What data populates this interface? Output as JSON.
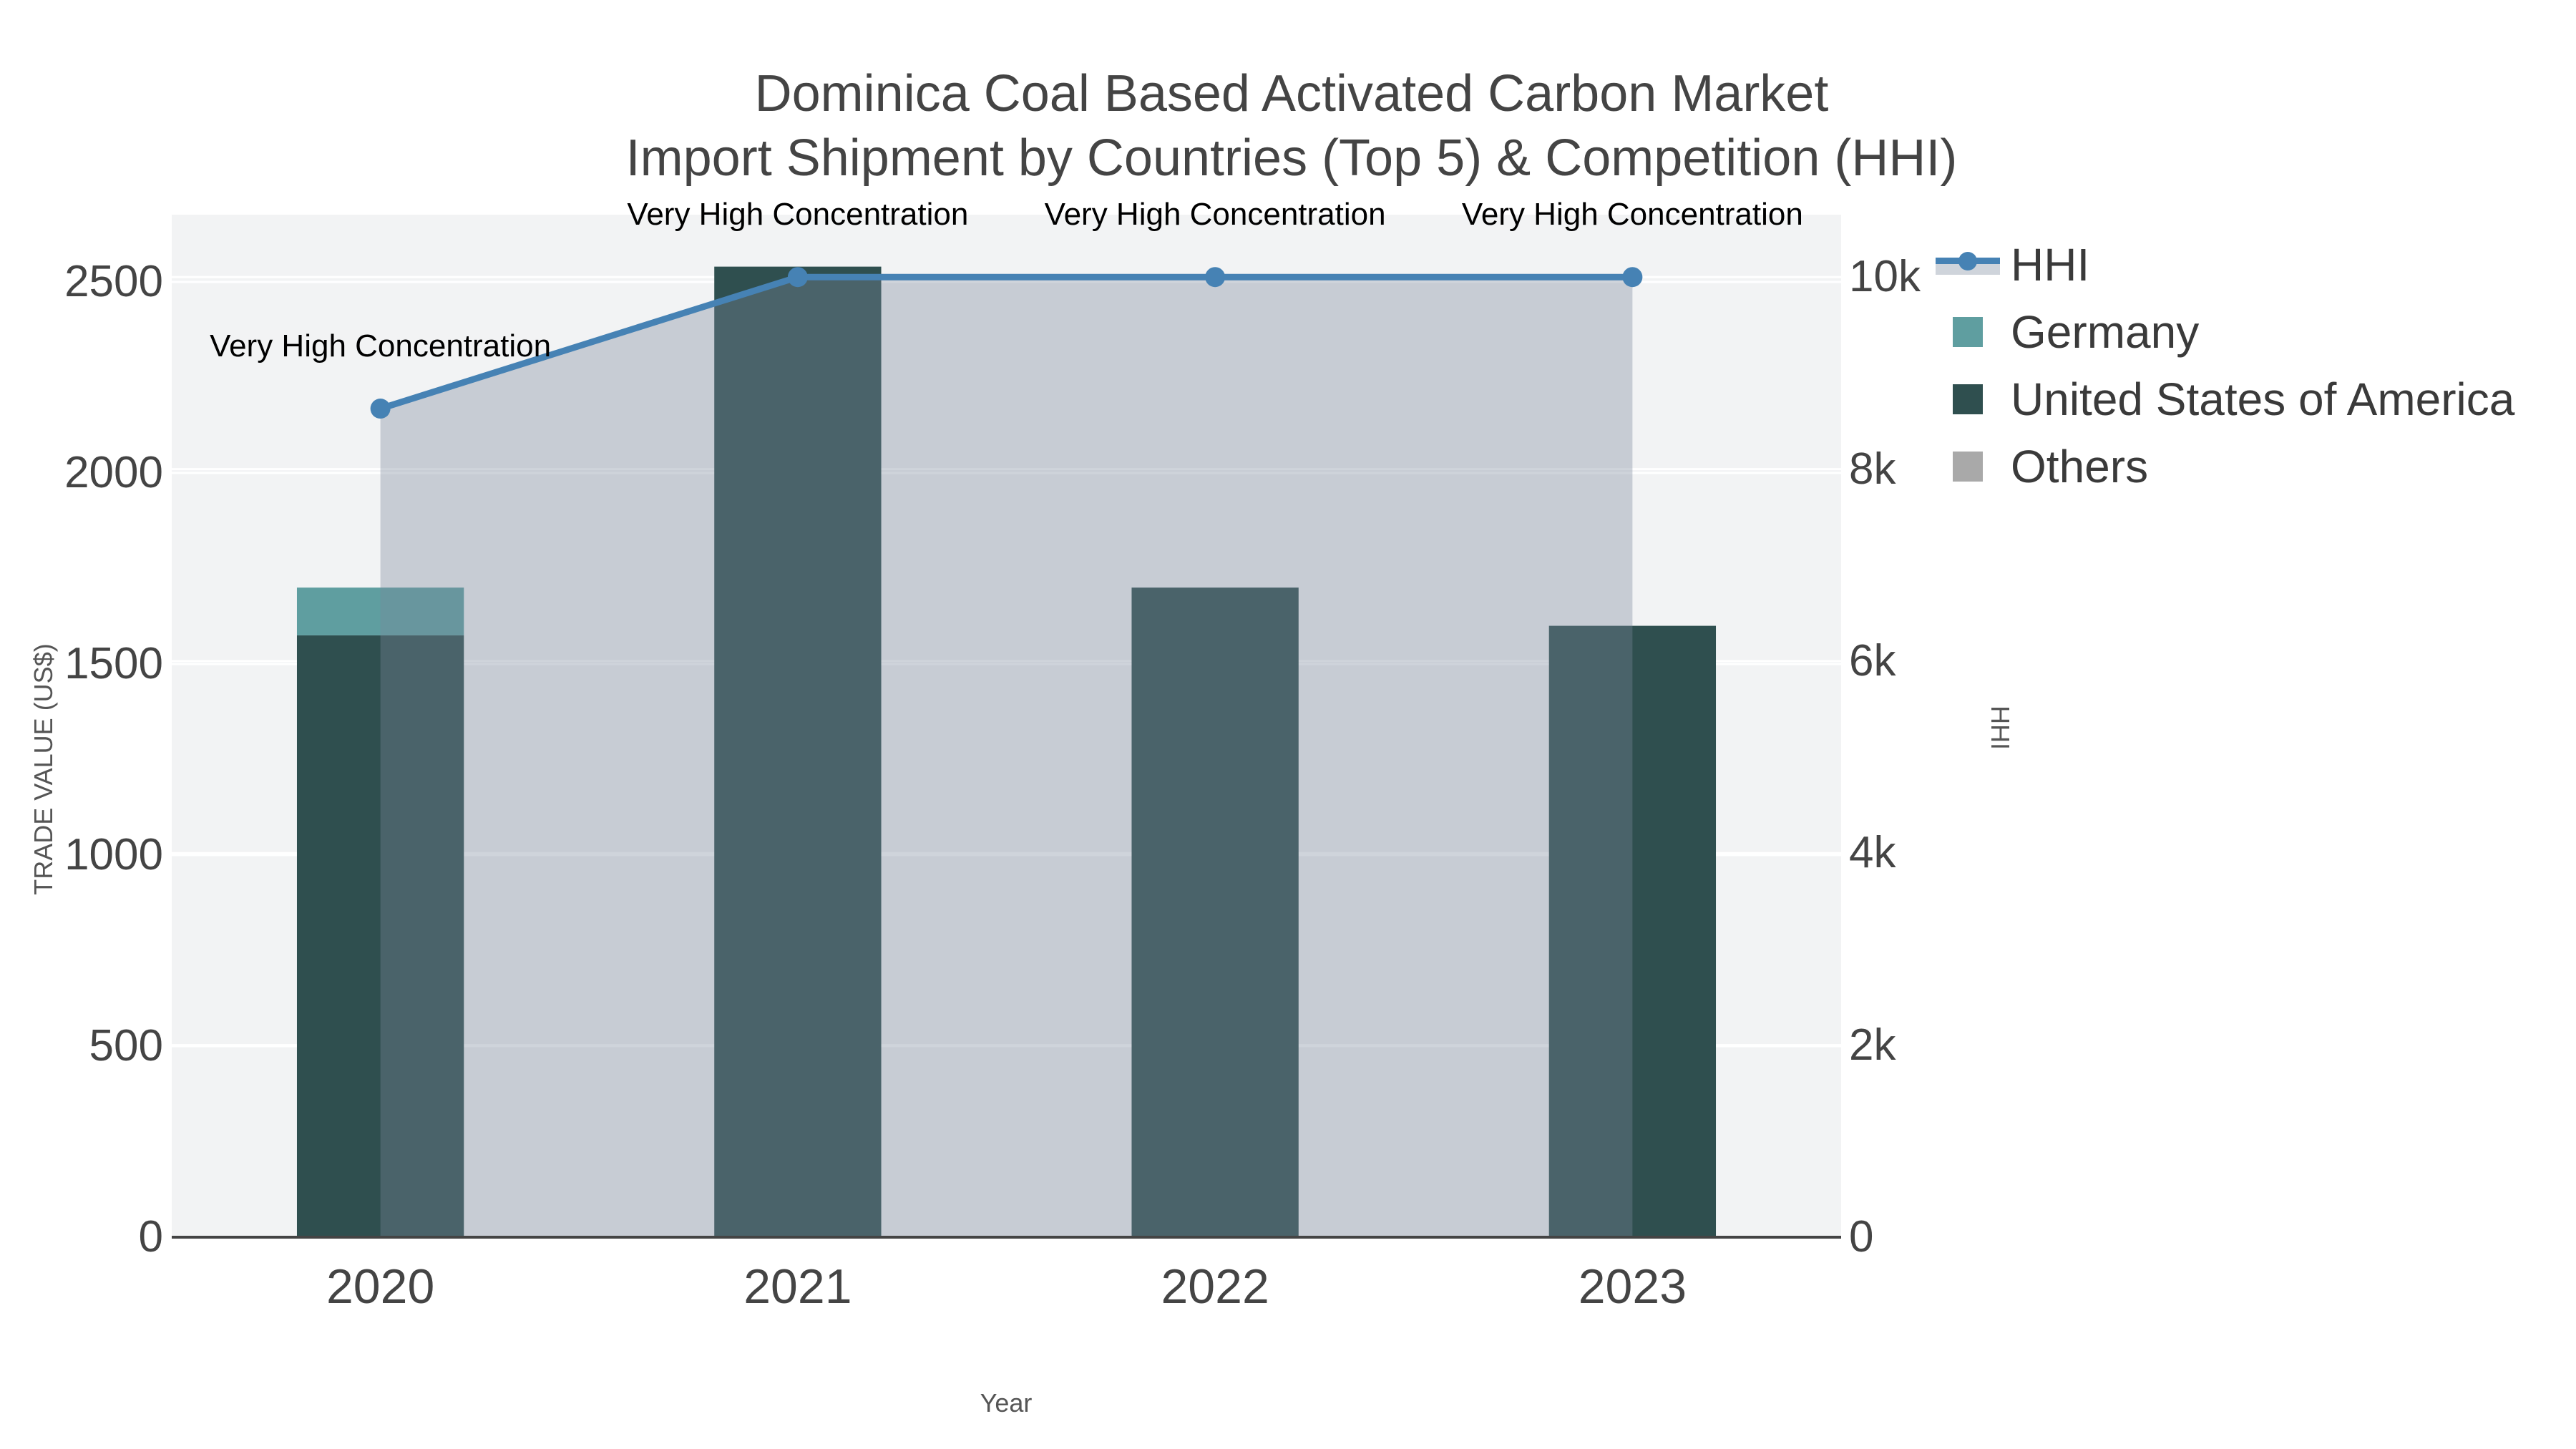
{
  "title": {
    "line1": "Dominica Coal Based Activated Carbon Market",
    "line2": "Import Shipment by Countries (Top 5) & Competition (HHI)"
  },
  "axes": {
    "x_title": "Year",
    "y_left_title": "TRADE VALUE (US$)",
    "y_right_title": "HHI",
    "y_left_ticks": [
      "0",
      "500",
      "1000",
      "1500",
      "2000",
      "2500"
    ],
    "y_left_tick_values": [
      0,
      500,
      1000,
      1500,
      2000,
      2500
    ],
    "y_right_ticks": [
      "0",
      "2k",
      "4k",
      "6k",
      "8k",
      "10k"
    ],
    "y_right_tick_values": [
      0,
      2000,
      4000,
      6000,
      8000,
      10000
    ],
    "x_ticks": [
      "2020",
      "2021",
      "2022",
      "2023"
    ]
  },
  "legend": {
    "items": [
      {
        "label": "HHI",
        "type": "line",
        "color": "#4682B4",
        "band_color": "#cfd4db"
      },
      {
        "label": "Germany",
        "type": "square",
        "color": "#5F9EA0"
      },
      {
        "label": "United States of America",
        "type": "square",
        "color": "#2F4F4F"
      },
      {
        "label": "Others",
        "type": "square",
        "color": "#A9A9A9"
      }
    ]
  },
  "chart_data": {
    "type": "bar",
    "subtype": "stacked-bars-with-line-area",
    "title": "Dominica Coal Based Activated Carbon Market Import Shipment by Countries (Top 5) & Competition (HHI)",
    "categories": [
      "2020",
      "2021",
      "2022",
      "2023"
    ],
    "series": [
      {
        "name": "United States of America",
        "type": "bar",
        "axis": "left",
        "color": "#2F4F4F",
        "values": [
          1575,
          2540,
          1700,
          1600
        ]
      },
      {
        "name": "Germany",
        "type": "bar",
        "axis": "left",
        "color": "#5F9EA0",
        "values": [
          125,
          0,
          0,
          0
        ]
      },
      {
        "name": "Others",
        "type": "bar",
        "axis": "left",
        "color": "#A9A9A9",
        "values": [
          0,
          0,
          0,
          0
        ]
      },
      {
        "name": "HHI",
        "type": "line",
        "axis": "right",
        "color": "#4682B4",
        "fill": "tozeroy",
        "fill_color": "rgba(122,135,155,0.36)",
        "values": [
          8630,
          10000,
          10000,
          10000
        ]
      }
    ],
    "bar_totals": [
      1700,
      2540,
      1700,
      1600
    ],
    "annotations": [
      "Very High Concentration",
      "Very High Concentration",
      "Very High Concentration",
      "Very High Concentration"
    ],
    "xlabel": "Year",
    "ylabel_left": "TRADE VALUE (US$)",
    "ylabel_right": "HHI",
    "ylim_left": [
      0,
      2676
    ],
    "ylim_right": [
      0,
      10650
    ],
    "grid": true,
    "grid_color": "#ffffff",
    "plot_bg": "#f2f3f4",
    "paper_bg": "#ffffff",
    "axis_line_color": "#444444",
    "legend_position": "right"
  }
}
